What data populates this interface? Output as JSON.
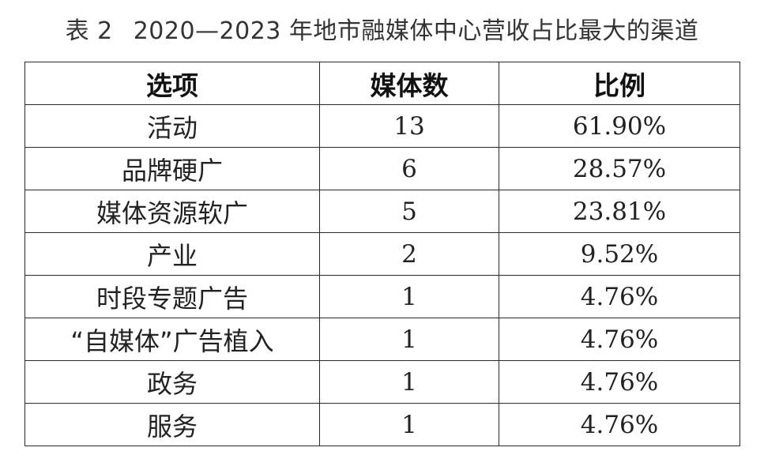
{
  "caption": {
    "number": "表 2",
    "title": "2020—2023 年地市融媒体中心营收占比最大的渠道"
  },
  "table": {
    "headers": [
      "选项",
      "媒体数",
      "比例"
    ],
    "rows": [
      [
        "活动",
        "13",
        "61.90%"
      ],
      [
        "品牌硬广",
        "6",
        "28.57%"
      ],
      [
        "媒体资源软广",
        "5",
        "23.81%"
      ],
      [
        "产业",
        "2",
        "9.52%"
      ],
      [
        "时段专题广告",
        "1",
        "4.76%"
      ],
      [
        "“自媒体”广告植入",
        "1",
        "4.76%"
      ],
      [
        "政务",
        "1",
        "4.76%"
      ],
      [
        "服务",
        "1",
        "4.76%"
      ]
    ]
  }
}
